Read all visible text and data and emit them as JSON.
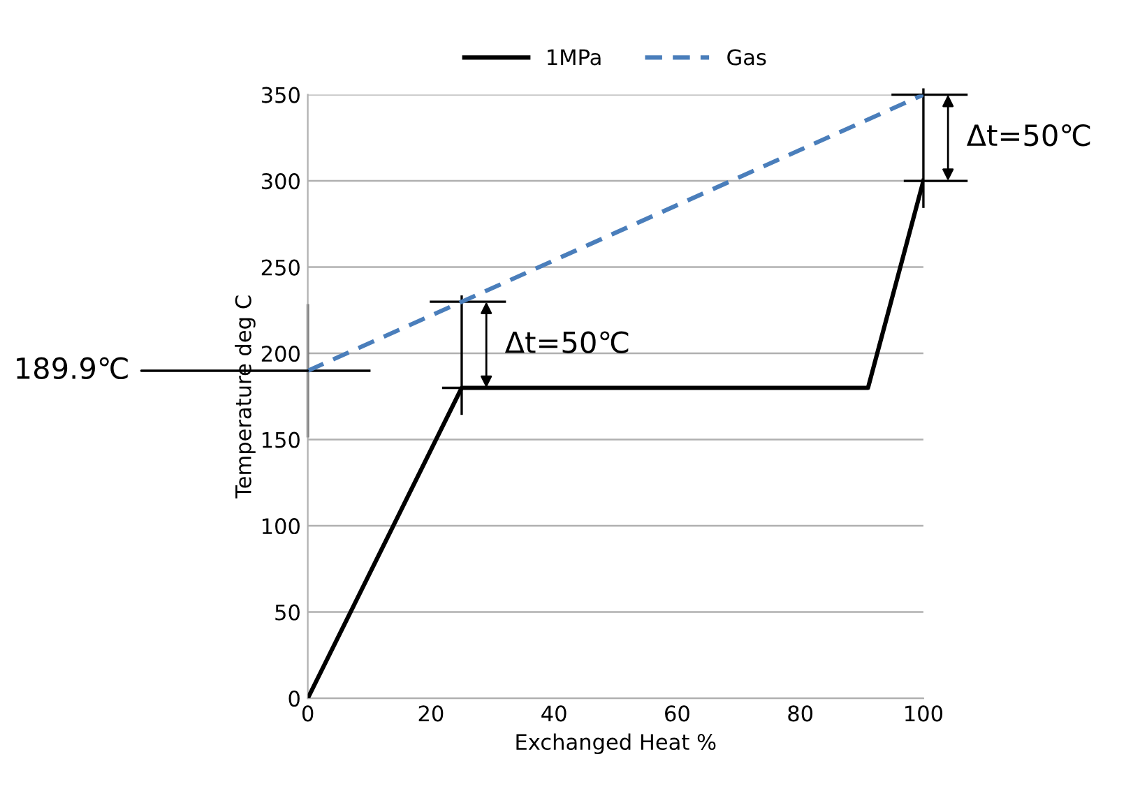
{
  "chart_data": {
    "type": "line",
    "xlabel": "Exchanged Heat %",
    "ylabel": "Temperature deg C",
    "xlim": [
      0,
      100
    ],
    "xticks": [
      0,
      20,
      40,
      60,
      80,
      100
    ],
    "ylim": [
      0,
      350
    ],
    "yticks": [
      0,
      50,
      100,
      150,
      200,
      250,
      300,
      350
    ],
    "grid": "y",
    "legend": "top",
    "marker": "none",
    "series": [
      {
        "name": "1MPa",
        "color": "#000000",
        "line_style": "solid",
        "x": [
          0,
          25,
          91,
          100
        ],
        "values": [
          0,
          180,
          180,
          300
        ]
      },
      {
        "name": "Gas",
        "color": "#4a7ebb",
        "line_style": "dashed",
        "x": [
          0,
          100
        ],
        "values": [
          189.9,
          350
        ]
      }
    ],
    "annotations": [
      {
        "text": "Δt=50℃",
        "x": 25,
        "y": 180
      },
      {
        "text": "Δt=50℃",
        "x": 100,
        "y": 300
      },
      {
        "text": "189.9℃",
        "x": 0,
        "y": 189.9
      }
    ]
  }
}
